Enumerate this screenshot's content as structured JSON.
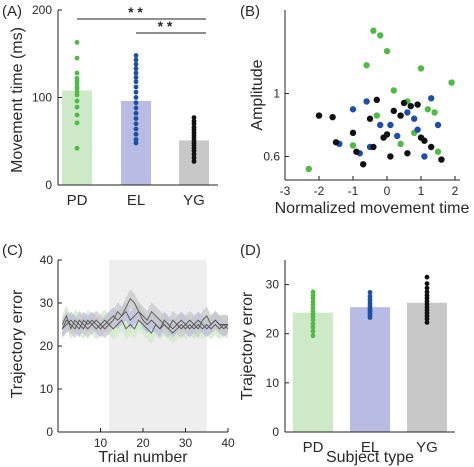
{
  "colors": {
    "PD": "#52b848",
    "EL": "#1f4fa2",
    "YG": "#111111",
    "PD_fill": "#cde9c8",
    "EL_fill": "#b8bbe3",
    "YG_fill": "#c8c8c8",
    "shade": "#eeeeee",
    "mean_line": "#555555"
  },
  "chart_data": [
    {
      "panel": "(A)",
      "type": "bar",
      "categories": [
        "PD",
        "EL",
        "YG"
      ],
      "values": [
        108,
        96,
        51
      ],
      "ylabel": "Movement time (ms)",
      "xlabel": "",
      "ylim": [
        0,
        200
      ],
      "yticks": [
        "0",
        "100",
        "200"
      ],
      "significance": [
        {
          "from": "PD",
          "to": "YG",
          "label": "* *"
        },
        {
          "from": "EL",
          "to": "YG",
          "label": "* *"
        }
      ],
      "points": {
        "PD": [
          163,
          145,
          128,
          122,
          119,
          116,
          112,
          110,
          106,
          103,
          96,
          89,
          80,
          71,
          42
        ],
        "EL": [
          148,
          143,
          138,
          133,
          128,
          123,
          118,
          112,
          106,
          100,
          94,
          88,
          82,
          76,
          70,
          64,
          58,
          52,
          48
        ],
        "YG": [
          77,
          73,
          70,
          66,
          63,
          60,
          57,
          54,
          51,
          48,
          45,
          42,
          39,
          35,
          31,
          27
        ]
      }
    },
    {
      "panel": "(B)",
      "type": "scatter",
      "xlabel": "Normalized movement time",
      "ylabel": "Amplitude",
      "xlim": [
        -3,
        2
      ],
      "ylim": [
        0.45,
        1.5
      ],
      "xticks": [
        "-3",
        "-2",
        "-1",
        "0",
        "1",
        "2"
      ],
      "yticks": [
        "0.6",
        "1"
      ],
      "series": [
        {
          "group": "PD",
          "points": [
            [
              -2.3,
              0.52
            ],
            [
              -0.6,
              1.18
            ],
            [
              -0.4,
              1.4
            ],
            [
              -0.2,
              1.37
            ],
            [
              0.0,
              1.27
            ],
            [
              0.2,
              1.02
            ],
            [
              0.6,
              0.95
            ],
            [
              1.0,
              1.16
            ],
            [
              1.2,
              0.9
            ],
            [
              1.4,
              0.88
            ],
            [
              1.5,
              0.63
            ],
            [
              0.8,
              0.75
            ],
            [
              -0.3,
              0.86
            ],
            [
              0.4,
              0.68
            ],
            [
              -1.0,
              0.67
            ],
            [
              1.9,
              1.07
            ]
          ]
        },
        {
          "group": "EL",
          "points": [
            [
              -1.4,
              0.68
            ],
            [
              -1.0,
              0.9
            ],
            [
              -0.6,
              0.95
            ],
            [
              -0.5,
              0.66
            ],
            [
              -0.2,
              0.8
            ],
            [
              0.1,
              0.8
            ],
            [
              0.3,
              0.73
            ],
            [
              0.6,
              0.88
            ],
            [
              0.8,
              0.84
            ],
            [
              0.9,
              0.77
            ],
            [
              1.3,
              0.97
            ],
            [
              1.5,
              0.8
            ],
            [
              -0.8,
              0.62
            ],
            [
              1.1,
              0.6
            ]
          ]
        },
        {
          "group": "YG",
          "points": [
            [
              -2.0,
              0.86
            ],
            [
              -1.5,
              0.69
            ],
            [
              -1.0,
              0.75
            ],
            [
              -0.9,
              0.63
            ],
            [
              -0.5,
              0.84
            ],
            [
              -0.3,
              0.96
            ],
            [
              -0.1,
              0.72
            ],
            [
              0.0,
              0.74
            ],
            [
              0.2,
              0.89
            ],
            [
              0.4,
              0.86
            ],
            [
              0.5,
              0.94
            ],
            [
              0.7,
              0.92
            ],
            [
              0.9,
              0.93
            ],
            [
              1.1,
              0.7
            ],
            [
              1.3,
              0.66
            ],
            [
              1.6,
              0.58
            ],
            [
              -0.7,
              0.55
            ],
            [
              0.1,
              0.6
            ],
            [
              0.6,
              0.62
            ],
            [
              1.0,
              0.72
            ],
            [
              -1.6,
              0.85
            ],
            [
              -0.4,
              0.66
            ]
          ]
        }
      ]
    },
    {
      "panel": "(C)",
      "type": "line",
      "xlabel": "Trial number",
      "ylabel": "Trajectory error",
      "xlim": [
        0,
        40
      ],
      "ylim": [
        0,
        40
      ],
      "xticks": [
        "10",
        "20",
        "30",
        "40"
      ],
      "yticks": [
        "0",
        "10",
        "20",
        "30",
        "40"
      ],
      "shaded_region": [
        12,
        35
      ],
      "x": [
        1,
        2,
        3,
        4,
        5,
        6,
        7,
        8,
        9,
        10,
        11,
        12,
        13,
        14,
        15,
        16,
        17,
        18,
        19,
        20,
        21,
        22,
        23,
        24,
        25,
        26,
        27,
        28,
        29,
        30,
        31,
        32,
        33,
        34,
        35,
        36,
        37,
        38,
        39,
        40
      ],
      "series": [
        {
          "group": "PD",
          "values": [
            25,
            27,
            24,
            26,
            25,
            24,
            26,
            25,
            24,
            25,
            26,
            25,
            24,
            25,
            26,
            24,
            25,
            24,
            26,
            25,
            24,
            23,
            25,
            24,
            25,
            24,
            23,
            24,
            25,
            24,
            25,
            24,
            25,
            24,
            25,
            24,
            25,
            24,
            25,
            24
          ],
          "band": 2.5
        },
        {
          "group": "EL",
          "values": [
            24,
            25,
            26,
            25,
            24,
            26,
            25,
            26,
            25,
            24,
            25,
            26,
            27,
            26,
            27,
            28,
            26,
            27,
            28,
            26,
            25,
            26,
            25,
            24,
            26,
            25,
            24,
            25,
            26,
            25,
            24,
            25,
            26,
            25,
            24,
            25,
            26,
            25,
            24,
            25
          ],
          "band": 2.0
        },
        {
          "group": "YG",
          "values": [
            24,
            26,
            25,
            24,
            26,
            25,
            24,
            25,
            26,
            25,
            24,
            25,
            26,
            28,
            27,
            29,
            31,
            30,
            28,
            27,
            26,
            28,
            27,
            26,
            25,
            24,
            26,
            25,
            24,
            25,
            26,
            25,
            24,
            26,
            27,
            25,
            26,
            25,
            25,
            25
          ],
          "band": 2.2
        }
      ]
    },
    {
      "panel": "(D)",
      "type": "bar",
      "categories": [
        "PD",
        "EL",
        "YG"
      ],
      "values": [
        24.3,
        25.4,
        26.3
      ],
      "xlabel": "Subject type",
      "ylabel": "Trajectory error",
      "ylim": [
        0,
        35
      ],
      "yticks": [
        "0",
        "10",
        "20",
        "30"
      ],
      "points": {
        "PD": [
          28.5,
          27.8,
          27.2,
          26.5,
          25.9,
          25.2,
          24.6,
          24.0,
          23.4,
          22.8,
          22.0,
          21.3,
          20.5,
          19.6
        ],
        "EL": [
          28.4,
          27.6,
          26.9,
          26.3,
          25.8,
          25.3,
          24.9,
          24.5,
          24.1,
          23.7,
          23.3
        ],
        "YG": [
          31.5,
          30.2,
          29.3,
          28.5,
          27.8,
          27.2,
          26.6,
          26.0,
          25.4,
          24.8,
          24.2,
          23.6,
          23.0,
          22.3
        ]
      }
    }
  ]
}
